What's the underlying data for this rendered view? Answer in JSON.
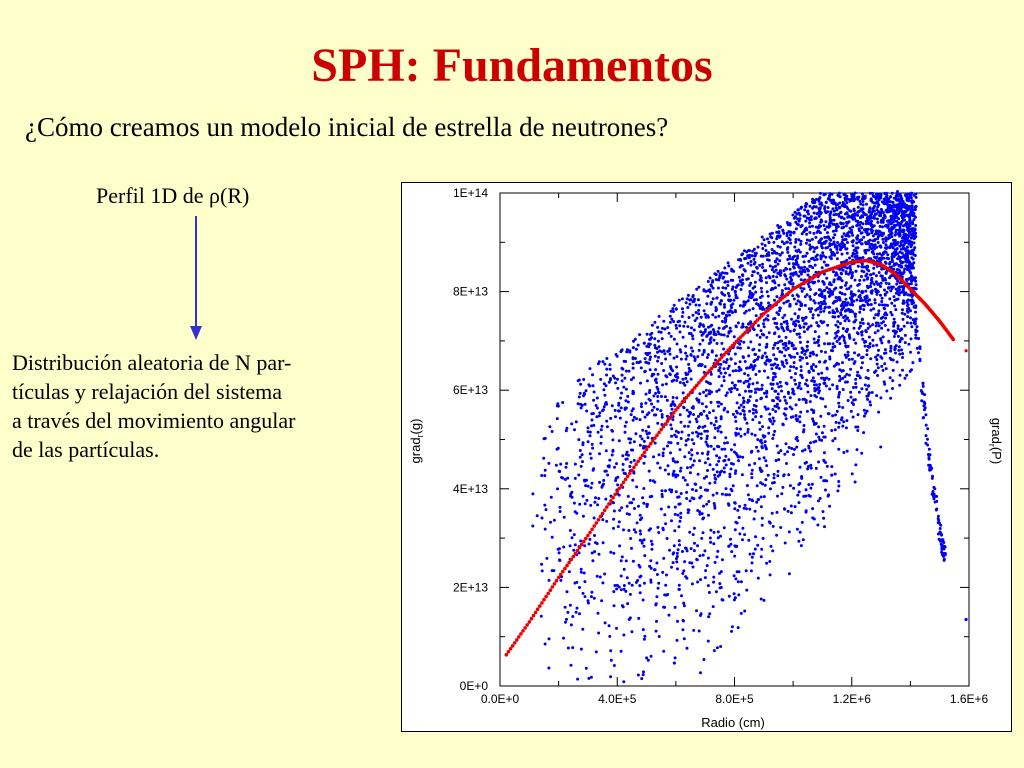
{
  "slide": {
    "title": "SPH: Fundamentos",
    "subtitle": "¿Cómo creamos un modelo inicial de estrella de neutrones?",
    "profile_label": "Perfil 1D de ρ(R)",
    "description_lines": [
      "Distribución aleatoria de N par-",
      "tículas y relajación del sistema",
      "a través del movimiento angular",
      "de las partículas."
    ]
  },
  "colors": {
    "background": "#ffffcc",
    "title": "#cc0000",
    "arrow": "#3333cc",
    "scatter": "#0000ee",
    "curve": "#ee0000"
  },
  "chart_data": {
    "type": "scatter",
    "xlabel": "Radio (cm)",
    "ylabel_left": "grad_r(g)",
    "ylabel_right": "grad_r(P)",
    "xlim": [
      0,
      1600000
    ],
    "ylim": [
      0,
      100000000000000
    ],
    "x_ticks": [
      {
        "value": 0,
        "label": "0.0E+0"
      },
      {
        "value": 400000,
        "label": "4.0E+5"
      },
      {
        "value": 800000,
        "label": "8.0E+5"
      },
      {
        "value": 1200000,
        "label": "1.2E+6"
      },
      {
        "value": 1600000,
        "label": "1.6E+6"
      }
    ],
    "y_ticks": [
      {
        "value": 0,
        "label": "0E+0"
      },
      {
        "value": 20000000000000,
        "label": "2E+13"
      },
      {
        "value": 40000000000000,
        "label": "4E+13"
      },
      {
        "value": 60000000000000,
        "label": "6E+13"
      },
      {
        "value": 80000000000000,
        "label": "8E+13"
      },
      {
        "value": 100000000000000,
        "label": "1E+14"
      }
    ],
    "grid": false,
    "series": [
      {
        "kind": "curve",
        "color": "#ee0000",
        "x": [
          0,
          100000,
          200000,
          300000,
          400000,
          500000,
          600000,
          700000,
          800000,
          900000,
          1000000,
          1100000,
          1200000,
          1250000,
          1300000,
          1350000,
          1400000,
          1450000,
          1500000,
          1550000
        ],
        "y": [
          4500000000000.0,
          13000000000000.0,
          22000000000000.0,
          30500000000000.0,
          39500000000000.0,
          48000000000000.0,
          56000000000000.0,
          63000000000000.0,
          69500000000000.0,
          75500000000000.0,
          80500000000000.0,
          84000000000000.0,
          86000000000000.0,
          86300000000000.0,
          85500000000000.0,
          83500000000000.0,
          80500000000000.0,
          77500000000000.0,
          74000000000000.0,
          70000000000000.0
        ]
      },
      {
        "kind": "points",
        "color": "#0000ee",
        "x_range": [
          100000,
          1560000
        ],
        "y_range": [
          0,
          100000000000000
        ],
        "peak_x": 1300000,
        "edge_drop": {
          "x": [
            1360000,
            1380000,
            1400000,
            1420000,
            1440000,
            1460000,
            1480000,
            1500000,
            1510000,
            1520000
          ],
          "y": [
            100000000000000.0,
            93000000000000.0,
            85000000000000.0,
            73000000000000.0,
            60000000000000.0,
            48000000000000.0,
            39000000000000.0,
            32000000000000.0,
            28000000000000.0,
            26000000000000.0
          ]
        }
      }
    ]
  }
}
